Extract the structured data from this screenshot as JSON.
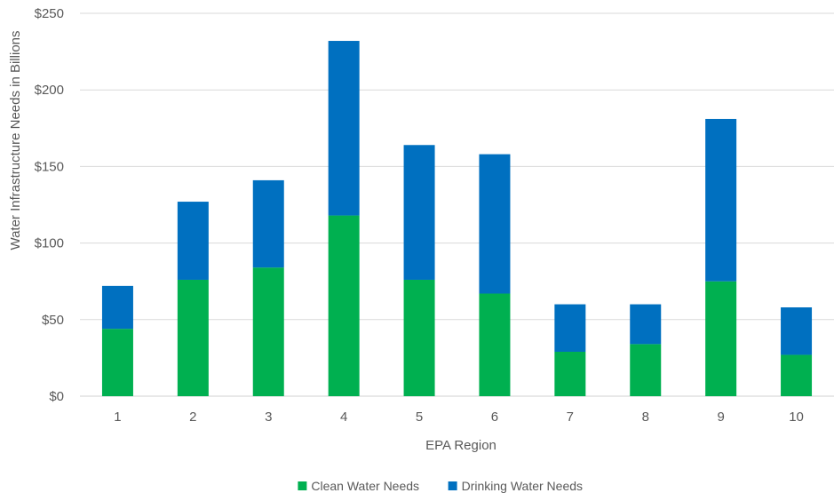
{
  "chart_data": {
    "type": "bar",
    "stacked": true,
    "title": "",
    "xlabel": "EPA Region",
    "ylabel": "Water Infrastructure Needs in Billions",
    "ylim": [
      0,
      250
    ],
    "y_ticks": [
      0,
      50,
      100,
      150,
      200,
      250
    ],
    "y_tick_labels": [
      "$0",
      "$50",
      "$100",
      "$150",
      "$200",
      "$250"
    ],
    "grid": true,
    "legend_position": "bottom",
    "categories": [
      "1",
      "2",
      "3",
      "4",
      "5",
      "6",
      "7",
      "8",
      "9",
      "10"
    ],
    "series": [
      {
        "name": "Clean Water Needs",
        "color": "#00b050",
        "values": [
          44,
          76,
          84,
          118,
          76,
          67,
          29,
          34,
          75,
          27
        ]
      },
      {
        "name": "Drinking Water Needs",
        "color": "#0070c0",
        "values": [
          28,
          51,
          57,
          114,
          88,
          91,
          31,
          26,
          106,
          31
        ]
      }
    ]
  }
}
